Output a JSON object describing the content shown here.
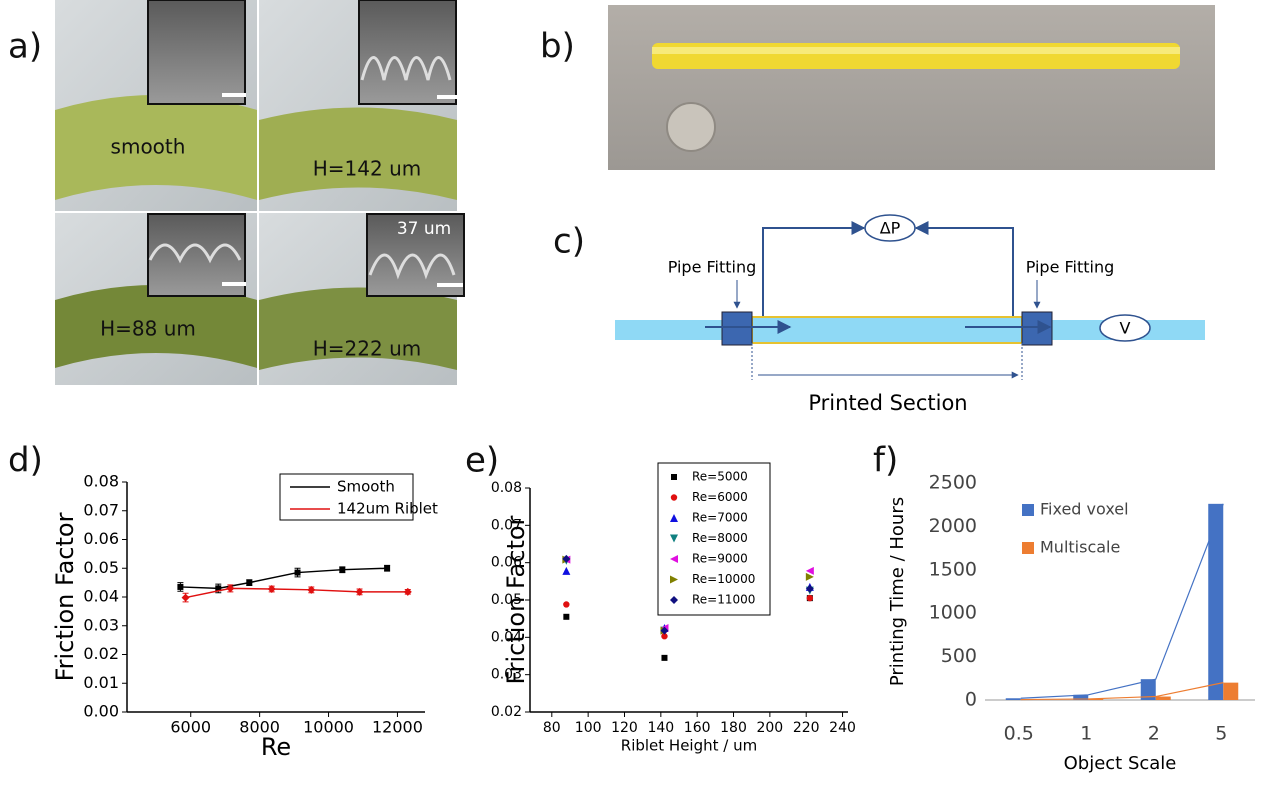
{
  "panel_labels": [
    "a)",
    "b)",
    "c)",
    "d)",
    "e)",
    "f)"
  ],
  "panel_a": {
    "labels": [
      "smooth",
      "H=142 um",
      "H=88 um",
      "H=222 um"
    ],
    "dimension": "37 um"
  },
  "panel_c": {
    "pressure": "ΔP",
    "velocity": "V",
    "fitting_left": "Pipe Fitting",
    "fitting_right": "Pipe Fitting",
    "section": "Printed Section"
  },
  "chart_data": [
    {
      "type": "line",
      "xlabel": "Re",
      "ylabel": "Friction Factor",
      "xlim": [
        4150,
        12800
      ],
      "xticks": [
        6000,
        8000,
        10000,
        12000
      ],
      "ylim": [
        0,
        0.08
      ],
      "yticks": [
        {
          "value": 0,
          "label": "0.00"
        },
        0.01,
        0.02,
        0.03,
        0.04,
        0.05,
        0.06,
        0.07,
        0.08
      ],
      "series": [
        {
          "name": "Smooth",
          "color": "#000000",
          "x": [
            5700,
            6800,
            7700,
            9100,
            10400,
            11700
          ],
          "values": [
            0.0435,
            0.043,
            0.045,
            0.0485,
            0.0495,
            0.05
          ],
          "errors": [
            0.0015,
            0.0015,
            0.001,
            0.0015,
            0.001,
            0.001
          ]
        },
        {
          "name": "142um Riblet",
          "color": "#e01010",
          "x": [
            5850,
            7150,
            8350,
            9500,
            10900,
            12300
          ],
          "values": [
            0.0398,
            0.043,
            0.0428,
            0.0425,
            0.0418,
            0.0418
          ],
          "errors": [
            0.0015,
            0.0012,
            0.001,
            0.001,
            0.001,
            0.0008
          ]
        }
      ]
    },
    {
      "type": "scatter",
      "xlabel": "Riblet Height / um",
      "ylabel": "Friction Factor",
      "x": [
        88,
        142,
        222
      ],
      "xlim": [
        68,
        243
      ],
      "xticks": [
        80,
        100,
        120,
        140,
        160,
        180,
        200,
        220,
        240
      ],
      "ylim": [
        0.02,
        0.08
      ],
      "yticks": [
        0.02,
        0.03,
        0.04,
        0.05,
        0.06,
        0.07,
        0.08
      ],
      "series": [
        {
          "name": "Re=5000",
          "color": "#000000",
          "marker": "square",
          "values": [
            0.0455,
            0.0345,
            0.0505
          ]
        },
        {
          "name": "Re=6000",
          "color": "#e01010",
          "marker": "circle",
          "values": [
            0.0488,
            0.0403,
            0.0505
          ]
        },
        {
          "name": "Re=7000",
          "color": "#1010e0",
          "marker": "triangle-up",
          "values": [
            0.0578,
            0.0425,
            0.0535
          ]
        },
        {
          "name": "Re=8000",
          "color": "#108080",
          "marker": "triangle-down",
          "values": [
            0.0605,
            0.0418,
            0.0525
          ]
        },
        {
          "name": "Re=9000",
          "color": "#e010e0",
          "marker": "triangle-left",
          "values": [
            0.0608,
            0.0425,
            0.0578
          ]
        },
        {
          "name": "Re=10000",
          "color": "#808000",
          "marker": "triangle-right",
          "values": [
            0.0608,
            0.0418,
            0.0562
          ]
        },
        {
          "name": "Re=11000",
          "color": "#101080",
          "marker": "diamond",
          "values": [
            0.061,
            0.0418,
            0.053
          ]
        }
      ]
    },
    {
      "type": "bar",
      "xlabel": "Object Scale",
      "ylabel": "Printing Time / Hours",
      "categories": [
        "0.5",
        "1",
        "2",
        "5"
      ],
      "ylim": [
        0,
        2500
      ],
      "yticks": [
        0,
        500,
        1000,
        1500,
        2000,
        2500
      ],
      "series": [
        {
          "name": "Fixed voxel",
          "color": "#4472c4",
          "values": [
            20,
            60,
            240,
            2260
          ]
        },
        {
          "name": "Multiscale",
          "color": "#ed7d31",
          "values": [
            5,
            12,
            40,
            200
          ]
        }
      ]
    }
  ]
}
